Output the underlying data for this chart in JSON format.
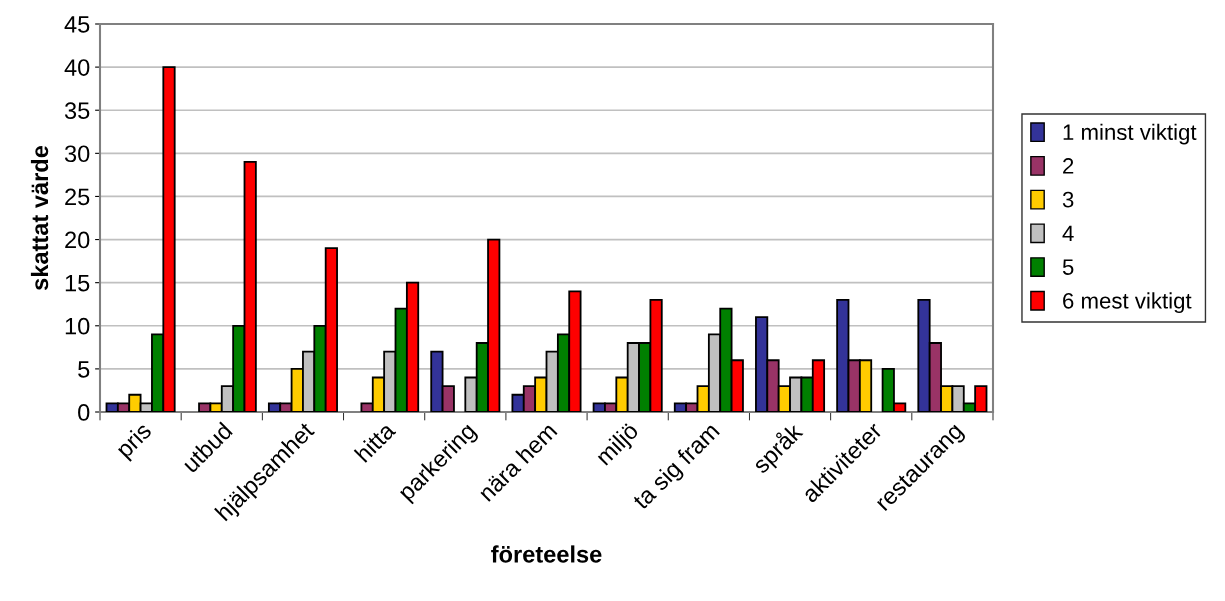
{
  "chart_data": {
    "type": "bar",
    "xlabel": "företeelse",
    "ylabel": "skattat värde",
    "categories": [
      "pris",
      "utbud",
      "hjälpsamhet",
      "hitta",
      "parkering",
      "nära hem",
      "miljö",
      "ta sig fram",
      "språk",
      "aktiviteter",
      "restaurang"
    ],
    "series": [
      {
        "name": "1 minst viktigt",
        "color": "#333399",
        "values": [
          1,
          null,
          1,
          null,
          7,
          2,
          1,
          1,
          11,
          13,
          13
        ]
      },
      {
        "name": "2",
        "color": "#993366",
        "values": [
          1,
          1,
          1,
          1,
          3,
          3,
          1,
          1,
          6,
          6,
          8
        ]
      },
      {
        "name": "3",
        "color": "#ffcc00",
        "values": [
          2,
          1,
          5,
          4,
          null,
          4,
          4,
          3,
          3,
          6,
          3
        ]
      },
      {
        "name": "4",
        "color": "#c0c0c0",
        "values": [
          1,
          3,
          7,
          7,
          4,
          7,
          8,
          9,
          4,
          null,
          3
        ]
      },
      {
        "name": "5",
        "color": "#008000",
        "values": [
          9,
          10,
          10,
          12,
          8,
          9,
          8,
          12,
          4,
          5,
          1
        ]
      },
      {
        "name": "6 mest viktigt",
        "color": "#ff0000",
        "values": [
          40,
          29,
          19,
          15,
          20,
          14,
          13,
          6,
          6,
          1,
          3
        ]
      }
    ],
    "ylim": [
      0,
      45
    ],
    "yticks": [
      0,
      5,
      10,
      15,
      20,
      25,
      30,
      35,
      40,
      45
    ],
    "grid": "y",
    "legend": "right"
  }
}
